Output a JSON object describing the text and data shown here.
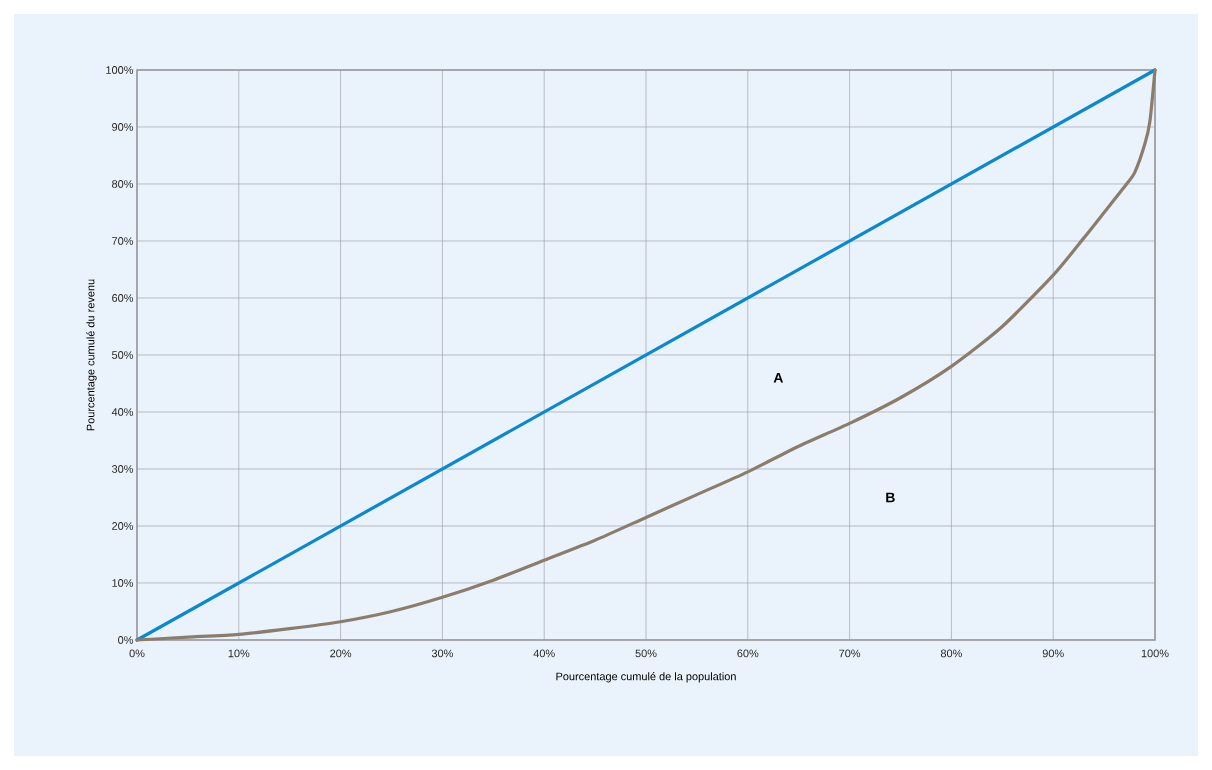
{
  "chart_data": {
    "type": "line",
    "xlabel": "Pourcentage cumulé de la population",
    "ylabel": "Pourcentage cumulé du revenu",
    "series": [
      {
        "color": "#0a88d0",
        "x": [
          0,
          100
        ],
        "values": [
          0,
          100
        ]
      },
      {
        "color": "#8b7d6b",
        "x": [
          0,
          5,
          10,
          15,
          20,
          25,
          30,
          35,
          40,
          45,
          50,
          55,
          60,
          65,
          70,
          75,
          80,
          85,
          90,
          93,
          95,
          97,
          98,
          99,
          99.5,
          100
        ],
        "values": [
          0,
          0.5,
          1,
          2,
          3.2,
          5,
          7.5,
          10.5,
          14,
          17.5,
          21.5,
          25.5,
          29.5,
          34,
          38,
          42.5,
          48,
          55,
          64,
          70.5,
          75,
          79.5,
          82,
          87,
          91,
          100
        ]
      }
    ],
    "xlim": [
      0,
      100
    ],
    "ylim": [
      0,
      100
    ],
    "xticks": [
      {
        "value": 0,
        "label": "0%"
      },
      {
        "value": 10,
        "label": "10%"
      },
      {
        "value": 20,
        "label": "20%"
      },
      {
        "value": 30,
        "label": "30%"
      },
      {
        "value": 40,
        "label": "40%"
      },
      {
        "value": 50,
        "label": "50%"
      },
      {
        "value": 60,
        "label": "60%"
      },
      {
        "value": 70,
        "label": "70%"
      },
      {
        "value": 80,
        "label": "80%"
      },
      {
        "value": 90,
        "label": "90%"
      },
      {
        "value": 100,
        "label": "100%"
      }
    ],
    "yticks": [
      {
        "value": 0,
        "label": "0%"
      },
      {
        "value": 10,
        "label": "10%"
      },
      {
        "value": 20,
        "label": "20%"
      },
      {
        "value": 30,
        "label": "30%"
      },
      {
        "value": 40,
        "label": "40%"
      },
      {
        "value": 50,
        "label": "50%"
      },
      {
        "value": 60,
        "label": "60%"
      },
      {
        "value": 70,
        "label": "70%"
      },
      {
        "value": 80,
        "label": "80%"
      },
      {
        "value": 90,
        "label": "90%"
      },
      {
        "value": 100,
        "label": "100%"
      }
    ],
    "grid": true,
    "marker": "none",
    "line_style": "solid",
    "annotations": [
      "A",
      "B"
    ]
  }
}
